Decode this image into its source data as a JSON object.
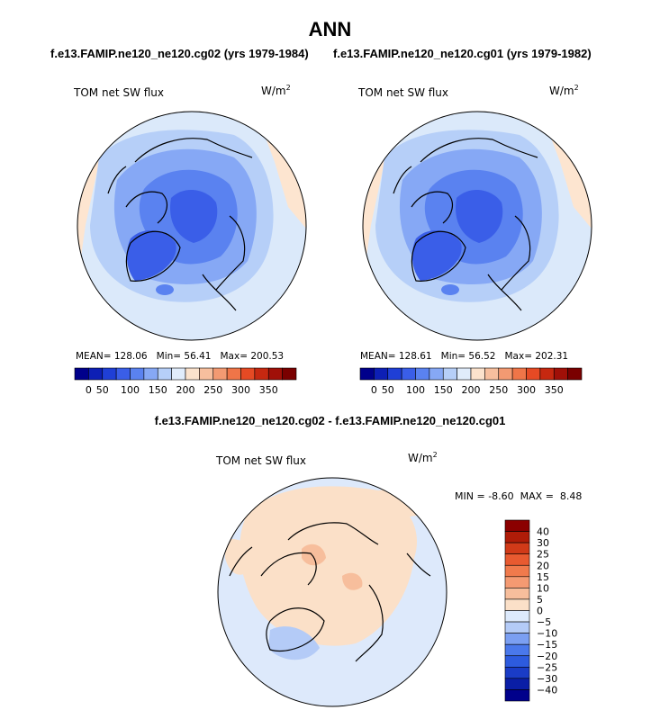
{
  "header": {
    "title": "ANN",
    "left_case": "f.e13.FAMIP.ne120_ne120.cg02 (yrs 1979-1984)",
    "right_case": "f.e13.FAMIP.ne120_ne120.cg01 (yrs 1979-1982)",
    "diff_title": "f.e13.FAMIP.ne120_ne120.cg02 - f.e13.FAMIP.ne120_ne120.cg01"
  },
  "panels": [
    {
      "variable": "TOM net SW flux",
      "units": "W/m",
      "units_exp": "2",
      "mean_label": "MEAN=",
      "mean": "128.06",
      "min_label": "Min=",
      "min": "56.41",
      "max_label": "Max=",
      "max": "200.53"
    },
    {
      "variable": "TOM net SW flux",
      "units": "W/m",
      "units_exp": "2",
      "mean_label": "MEAN=",
      "mean": "128.61",
      "min_label": "Min=",
      "min": "56.52",
      "max_label": "Max=",
      "max": "202.31"
    },
    {
      "variable": "TOM net SW flux",
      "units": "W/m",
      "units_exp": "2",
      "min_label": "MIN =",
      "min": "-8.60",
      "max_label": "MAX =",
      "max": "8.48"
    }
  ],
  "colors": {
    "abs_bar": [
      "#00008b",
      "#0d1fb5",
      "#1f3fd6",
      "#3a5ee8",
      "#5a82f0",
      "#86a8f5",
      "#b6cff8",
      "#e0ecfb",
      "#fbe2cc",
      "#f7bf9e",
      "#f39a72",
      "#ef7548",
      "#e64a24",
      "#c62810",
      "#a01008",
      "#7a0000"
    ],
    "diff_bar": [
      "#00008b",
      "#0a1ea6",
      "#1a3cc6",
      "#2d5bde",
      "#4a78eb",
      "#7b9ff2",
      "#b4cbf7",
      "#ddeafc",
      "#fbe0c8",
      "#f7be9c",
      "#f49a72",
      "#f07a4c",
      "#e85a30",
      "#d13a18",
      "#b01c08",
      "#8b0000"
    ]
  },
  "chart_data": [
    {
      "type": "heatmap",
      "title": "TOM net SW flux",
      "case": "f.e13.FAMIP.ne120_ne120.cg02 (yrs 1979-1984)",
      "season": "ANN",
      "units": "W/m2",
      "projection": "north-polar stereographic",
      "colorbar_ticks": [
        0,
        50,
        100,
        150,
        200,
        250,
        300,
        350
      ],
      "colorbar_tick_labels": [
        "0",
        "50",
        "100",
        "150",
        "200",
        "250",
        "300",
        "350"
      ],
      "stats": {
        "mean": 128.06,
        "min": 56.41,
        "max": 200.53
      }
    },
    {
      "type": "heatmap",
      "title": "TOM net SW flux",
      "case": "f.e13.FAMIP.ne120_ne120.cg01 (yrs 1979-1982)",
      "season": "ANN",
      "units": "W/m2",
      "projection": "north-polar stereographic",
      "colorbar_ticks": [
        0,
        50,
        100,
        150,
        200,
        250,
        300,
        350
      ],
      "colorbar_tick_labels": [
        "0",
        "50",
        "100",
        "150",
        "200",
        "250",
        "300",
        "350"
      ],
      "stats": {
        "mean": 128.61,
        "min": 56.52,
        "max": 202.31
      }
    },
    {
      "type": "heatmap",
      "title": "TOM net SW flux",
      "case": "f.e13.FAMIP.ne120_ne120.cg02 - f.e13.FAMIP.ne120_ne120.cg01",
      "units": "W/m2",
      "projection": "north-polar stereographic",
      "colorbar_levels": [
        40,
        30,
        25,
        20,
        15,
        10,
        5,
        0,
        -5,
        -10,
        -15,
        -20,
        -25,
        -30,
        -40
      ],
      "colorbar_tick_labels": [
        "40",
        "30",
        "25",
        "20",
        "15",
        "10",
        "5",
        "0",
        "−5",
        "−10",
        "−15",
        "−20",
        "−25",
        "−30",
        "−40"
      ],
      "stats": {
        "min": -8.6,
        "max": 8.48
      }
    }
  ]
}
